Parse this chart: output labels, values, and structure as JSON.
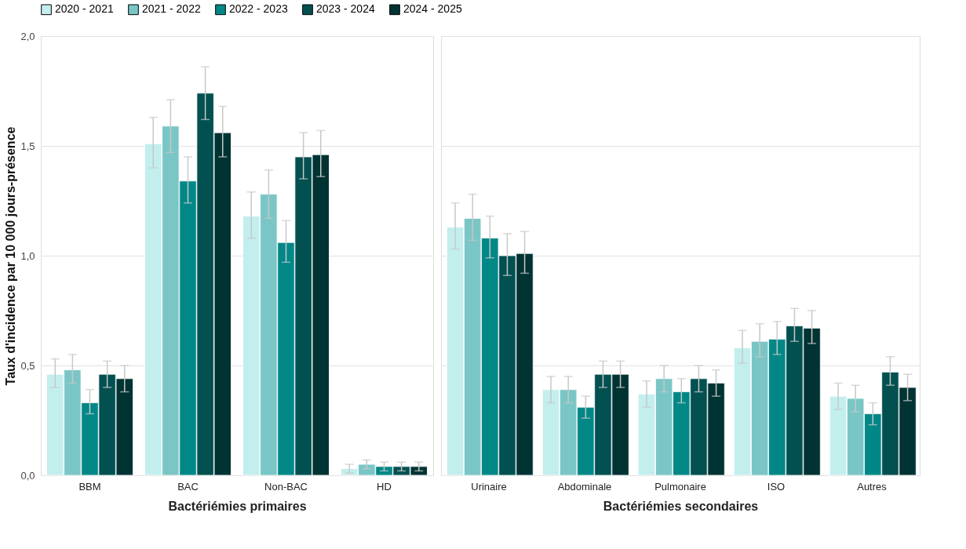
{
  "chart_data": [
    {
      "type": "bar",
      "xlabel": "Bactériémies primaires",
      "ylabel": "Taux d'incidence par 10 000 jours-présence",
      "categories": [
        "BBM",
        "BAC",
        "Non-BAC",
        "HD"
      ],
      "ylim": [
        0,
        2
      ],
      "yticks": [
        {
          "value": 0,
          "label": "0,0"
        },
        {
          "value": 0.5,
          "label": "0,5"
        },
        {
          "value": 1,
          "label": "1,0"
        },
        {
          "value": 1.5,
          "label": "1,5"
        },
        {
          "value": 2,
          "label": "2,0"
        }
      ],
      "grid": "y",
      "legend": "top",
      "series": [
        {
          "name": "2020 - 2021",
          "color": "#c3eeee",
          "values": [
            0.46,
            1.51,
            1.18,
            0.03
          ],
          "errors": [
            [
              0.4,
              0.53
            ],
            [
              1.4,
              1.63
            ],
            [
              1.08,
              1.29
            ],
            [
              0.01,
              0.05
            ]
          ]
        },
        {
          "name": "2021 - 2022",
          "color": "#7ac6c6",
          "values": [
            0.48,
            1.59,
            1.28,
            0.05
          ],
          "errors": [
            [
              0.42,
              0.55
            ],
            [
              1.47,
              1.71
            ],
            [
              1.17,
              1.39
            ],
            [
              0.03,
              0.07
            ]
          ]
        },
        {
          "name": "2022 - 2023",
          "color": "#028787",
          "values": [
            0.33,
            1.34,
            1.06,
            0.04
          ],
          "errors": [
            [
              0.28,
              0.39
            ],
            [
              1.24,
              1.45
            ],
            [
              0.97,
              1.16
            ],
            [
              0.02,
              0.06
            ]
          ]
        },
        {
          "name": "2023 - 2024",
          "color": "#035050",
          "values": [
            0.46,
            1.74,
            1.45,
            0.04
          ],
          "errors": [
            [
              0.4,
              0.52
            ],
            [
              1.62,
              1.86
            ],
            [
              1.35,
              1.56
            ],
            [
              0.02,
              0.06
            ]
          ]
        },
        {
          "name": "2024 - 2025",
          "color": "#023333",
          "values": [
            0.44,
            1.56,
            1.46,
            0.04
          ],
          "errors": [
            [
              0.38,
              0.5
            ],
            [
              1.45,
              1.68
            ],
            [
              1.36,
              1.57
            ],
            [
              0.02,
              0.06
            ]
          ]
        }
      ]
    },
    {
      "type": "bar",
      "xlabel": "Bactériémies secondaires",
      "categories": [
        "Urinaire",
        "Abdominale",
        "Pulmonaire",
        "ISO",
        "Autres"
      ],
      "ylim": [
        0,
        2
      ],
      "yticks": [
        0,
        0.5,
        1,
        1.5,
        2
      ],
      "grid": "y",
      "tick_labels": "x",
      "series": [
        {
          "name": "2020 - 2021",
          "color": "#c3eeee",
          "values": [
            1.13,
            0.39,
            0.37,
            0.58,
            0.36
          ],
          "errors": [
            [
              1.03,
              1.24
            ],
            [
              0.33,
              0.45
            ],
            [
              0.31,
              0.43
            ],
            [
              0.51,
              0.66
            ],
            [
              0.3,
              0.42
            ]
          ]
        },
        {
          "name": "2021 - 2022",
          "color": "#7ac6c6",
          "values": [
            1.17,
            0.39,
            0.44,
            0.61,
            0.35
          ],
          "errors": [
            [
              1.07,
              1.28
            ],
            [
              0.33,
              0.45
            ],
            [
              0.38,
              0.5
            ],
            [
              0.54,
              0.69
            ],
            [
              0.29,
              0.41
            ]
          ]
        },
        {
          "name": "2022 - 2023",
          "color": "#028787",
          "values": [
            1.08,
            0.31,
            0.38,
            0.62,
            0.28
          ],
          "errors": [
            [
              0.99,
              1.18
            ],
            [
              0.26,
              0.36
            ],
            [
              0.33,
              0.44
            ],
            [
              0.55,
              0.7
            ],
            [
              0.23,
              0.33
            ]
          ]
        },
        {
          "name": "2023 - 2024",
          "color": "#035050",
          "values": [
            1.0,
            0.46,
            0.44,
            0.68,
            0.47
          ],
          "errors": [
            [
              0.91,
              1.1
            ],
            [
              0.4,
              0.52
            ],
            [
              0.38,
              0.5
            ],
            [
              0.61,
              0.76
            ],
            [
              0.41,
              0.54
            ]
          ]
        },
        {
          "name": "2024 - 2025",
          "color": "#023333",
          "values": [
            1.01,
            0.46,
            0.42,
            0.67,
            0.4
          ],
          "errors": [
            [
              0.92,
              1.11
            ],
            [
              0.4,
              0.52
            ],
            [
              0.36,
              0.48
            ],
            [
              0.6,
              0.75
            ],
            [
              0.34,
              0.46
            ]
          ]
        }
      ]
    }
  ]
}
